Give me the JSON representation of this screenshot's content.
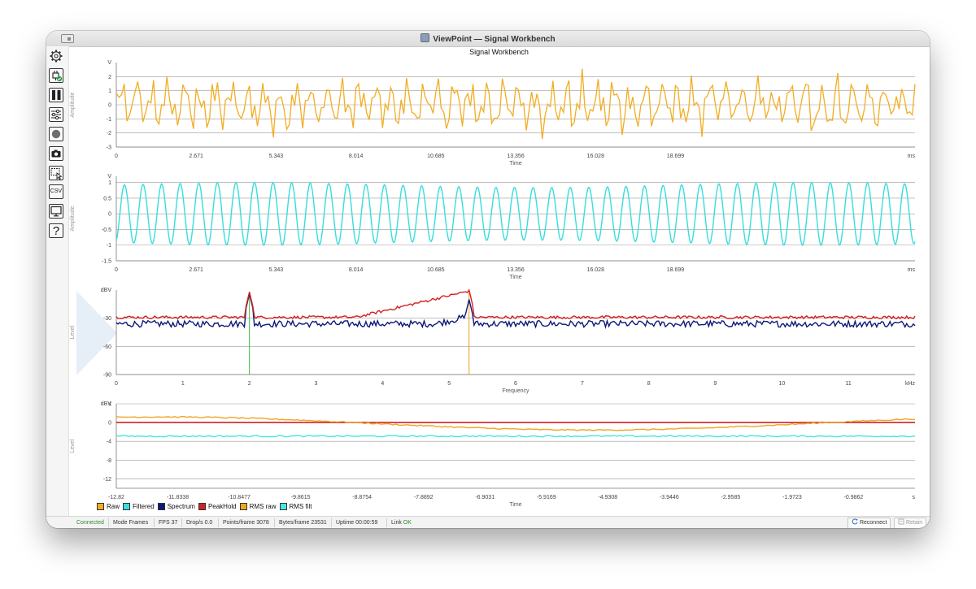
{
  "window": {
    "title": "ViewPoint — Signal Workbench"
  },
  "main_title": "Signal Workbench",
  "toolbar": {
    "items": [
      {
        "name": "settings",
        "icon": "gear-icon"
      },
      {
        "name": "connect",
        "icon": "plug-check-icon"
      },
      {
        "name": "pause",
        "icon": "pause-icon"
      },
      {
        "name": "filters",
        "icon": "sliders-icon"
      },
      {
        "name": "record",
        "icon": "record-icon"
      },
      {
        "name": "snapshot",
        "icon": "camera-icon"
      },
      {
        "name": "select",
        "icon": "selection-icon"
      },
      {
        "name": "export",
        "icon": "csv-icon",
        "label": "CSV"
      },
      {
        "name": "display",
        "icon": "monitor-icon"
      },
      {
        "name": "help",
        "icon": "help-icon",
        "label": "?"
      }
    ]
  },
  "colors": {
    "raw": "#f2ad22",
    "filtered": "#37dedc",
    "spectrum": "#0d1a78",
    "peakhold": "#d42020",
    "rms_raw": "#f0a424",
    "rms_filt": "#48e6e0",
    "marker1": "#3cba3c",
    "marker2": "#e8a020",
    "grid": "#999999"
  },
  "chart_data": [
    {
      "type": "line",
      "id": "raw",
      "xlabel": "Time",
      "ylabel": "Amplitude",
      "x_unit": "ms",
      "y_unit": "V",
      "xlim": [
        0,
        26.71
      ],
      "ylim": [
        -3,
        3
      ],
      "x_ticks": [
        "0",
        "2.671",
        "5.343",
        "8.014",
        "10.685",
        "13.356",
        "16.028",
        "18.699"
      ],
      "y_ticks": [
        "2",
        "1",
        "0",
        "-1",
        "-2",
        "-3"
      ],
      "series": [
        {
          "key": "raw",
          "samples": 300,
          "min": -2.7,
          "max": 2.8
        }
      ]
    },
    {
      "type": "line",
      "id": "filtered",
      "xlabel": "Time",
      "ylabel": "Amplitude",
      "x_unit": "ms",
      "y_unit": "V",
      "xlim": [
        0,
        26.71
      ],
      "ylim": [
        -1.5,
        1.2
      ],
      "x_ticks": [
        "0",
        "2.671",
        "5.343",
        "8.014",
        "10.685",
        "13.356",
        "16.028",
        "18.699"
      ],
      "y_ticks": [
        "1",
        "0.5",
        "0",
        "-0.5",
        "-1",
        "-1.5"
      ],
      "series": [
        {
          "key": "filtered",
          "cycles": 43,
          "amplitude": 1.0
        }
      ]
    },
    {
      "type": "line",
      "id": "spectrum",
      "xlabel": "Frequency",
      "ylabel": "Level",
      "x_unit": "kHz",
      "y_unit": "dBV",
      "xlim": [
        0,
        12
      ],
      "ylim": [
        -90,
        0
      ],
      "x_ticks": [
        "0",
        "1",
        "2",
        "3",
        "4",
        "5",
        "6",
        "7",
        "8",
        "9",
        "10",
        "11"
      ],
      "y_ticks": [
        "-30",
        "-60",
        "-90"
      ],
      "series": [
        {
          "key": "spectrum",
          "noise_floor": -36,
          "peaks": [
            {
              "f": 2.0,
              "level": -4
            },
            {
              "f": 5.3,
              "level": -10
            }
          ]
        },
        {
          "key": "peakhold",
          "noise_floor": -29,
          "peaks": [
            {
              "f": 2.0,
              "level": -2
            },
            {
              "f": 5.3,
              "level": 0
            }
          ]
        }
      ],
      "markers": [
        {
          "f": 2.0,
          "color_key": "marker1"
        },
        {
          "f": 5.3,
          "color_key": "marker2"
        }
      ]
    },
    {
      "type": "line",
      "id": "rms",
      "xlabel": "Time",
      "ylabel": "Level",
      "x_unit": "s",
      "y_unit": "dBV",
      "xlim": [
        -12.82,
        0
      ],
      "ylim": [
        -14,
        4
      ],
      "x_ticks": [
        "-12.82",
        "-11.8338",
        "-10.8477",
        "-9.8615",
        "-8.8754",
        "-7.8892",
        "-6.9031",
        "-5.9169",
        "-4.9308",
        "-3.9446",
        "-2.9585",
        "-1.9723",
        "-0.9862"
      ],
      "y_ticks": [
        "4",
        "0",
        "-4",
        "-8",
        "-12"
      ],
      "series": [
        {
          "key": "peakhold",
          "value": 0
        },
        {
          "key": "rms_raw",
          "shape": "slow-sine",
          "amplitude": 1.4
        },
        {
          "key": "rms_filt",
          "value": -2.9
        }
      ]
    }
  ],
  "legend": [
    {
      "key": "raw",
      "label": "Raw"
    },
    {
      "key": "filtered",
      "label": "Filtered"
    },
    {
      "key": "spectrum",
      "label": "Spectrum"
    },
    {
      "key": "peakhold",
      "label": "PeakHold"
    },
    {
      "key": "rms_raw",
      "label": "RMS raw"
    },
    {
      "key": "rms_filt",
      "label": "RMS filt"
    }
  ],
  "status": {
    "connection": "Connected",
    "mode_label": "Mode",
    "mode_value": "Frames",
    "fps_label": "FPS",
    "fps_value": "37",
    "drops_label": "Drop/s",
    "drops_value": "0.0",
    "points_label": "Points/frame",
    "points_value": "3078",
    "bytes_label": "Bytes/frame",
    "bytes_value": "23531",
    "uptime_label": "Uptime",
    "uptime_value": "00:00:59",
    "link_label": "Link",
    "link_value": "OK",
    "reconnect_label": "Reconnect",
    "retain_label": "Retain"
  }
}
